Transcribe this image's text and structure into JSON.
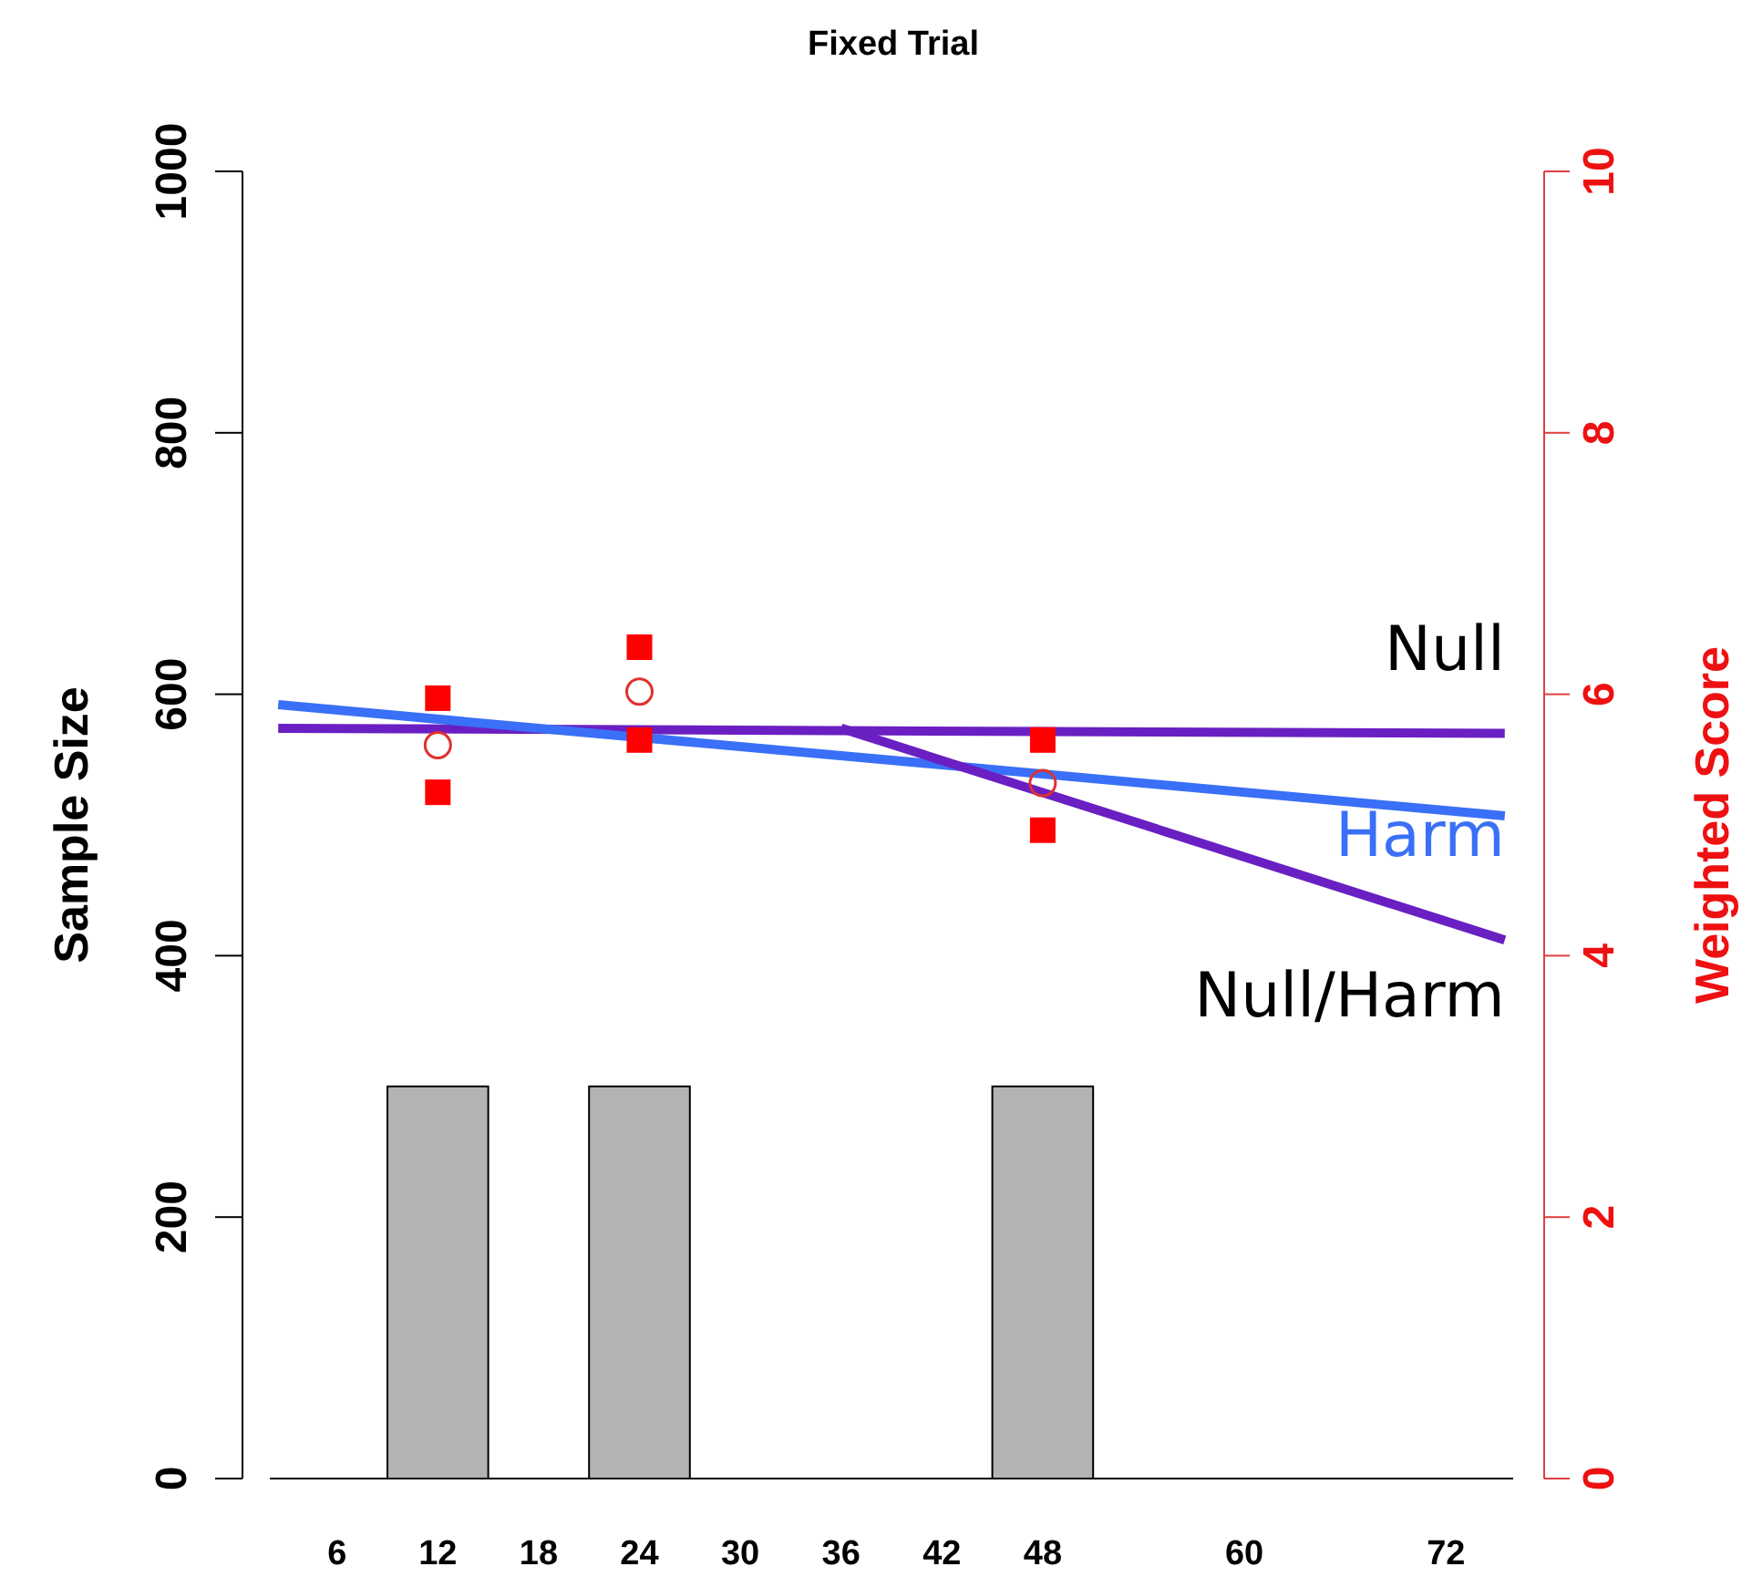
{
  "chart_data": {
    "type": "bar",
    "title": "Fixed Trial",
    "ylabel": "Sample Size",
    "y2label": "Weighted Score",
    "x": [
      12,
      24,
      48
    ],
    "values": [
      300,
      300,
      300
    ],
    "color": "#b3b3b3",
    "xlim": [
      2,
      76
    ],
    "xticks": [
      6,
      12,
      18,
      24,
      30,
      36,
      42,
      48,
      60,
      72
    ],
    "ylim": [
      0,
      1000
    ],
    "yticks": [
      0,
      200,
      400,
      600,
      800,
      1000
    ],
    "y2lim": [
      0,
      10
    ],
    "y2ticks": [
      0,
      2,
      4,
      6,
      8,
      10
    ],
    "series": [
      {
        "type": "scatter",
        "axis": "y2",
        "marker": "square",
        "color": "#ff0000",
        "x": [
          12,
          12,
          24,
          24,
          48,
          48
        ],
        "values": [
          5.97,
          5.25,
          6.36,
          5.65,
          5.65,
          4.96
        ]
      },
      {
        "type": "scatter",
        "axis": "y2",
        "marker": "circle",
        "color": "#e03030",
        "x": [
          12,
          24,
          48
        ],
        "values": [
          5.61,
          6.02,
          5.32
        ]
      },
      {
        "type": "line",
        "axis": "y2",
        "name": "Null",
        "color": "#6a1fc2",
        "x": [
          2.5,
          75.5
        ],
        "values": [
          5.74,
          5.7
        ]
      },
      {
        "type": "line",
        "axis": "y2",
        "name": "Harm",
        "color": "#3a6ff7",
        "x": [
          2.5,
          75.5
        ],
        "values": [
          5.92,
          5.07
        ]
      },
      {
        "type": "line",
        "axis": "y2",
        "name": "Null/Harm",
        "color": "#6a1fc2",
        "x": [
          36,
          75.5
        ],
        "values": [
          5.74,
          4.12
        ]
      }
    ]
  }
}
